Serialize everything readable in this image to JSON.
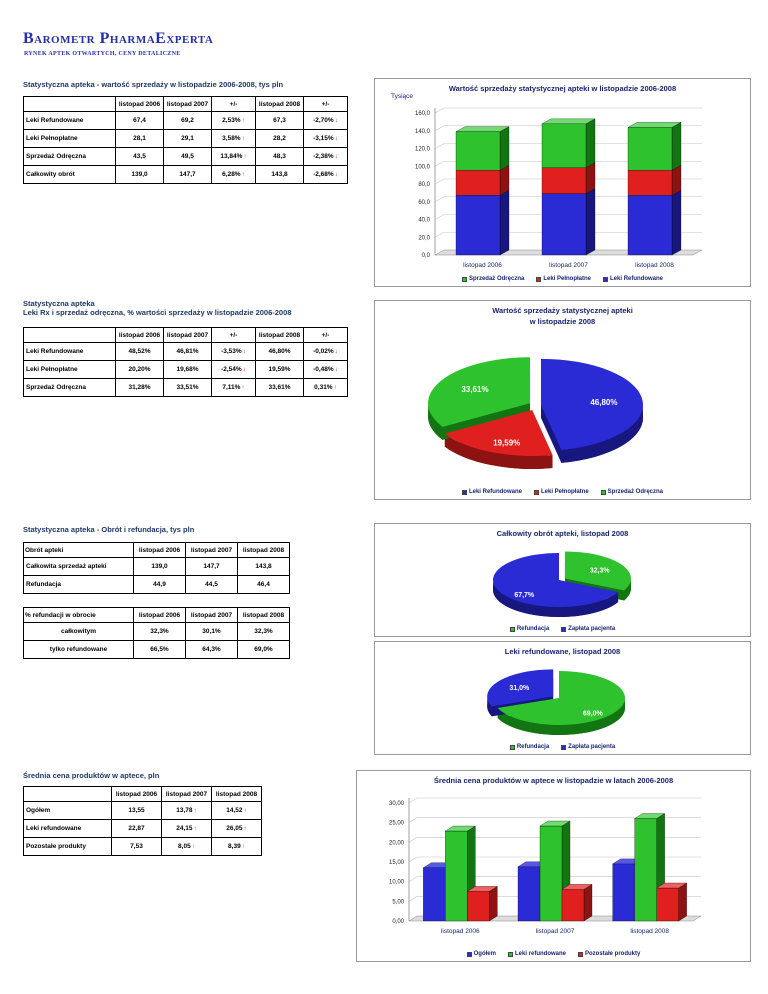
{
  "colors": {
    "title_blue": "#2431a5",
    "heading_navy": "#1f3864",
    "chart_text_navy": "#17246e",
    "arrow_up_green": "#18a018",
    "arrow_down_red": "#e01818"
  },
  "palette": {
    "blue": {
      "front": "#2b2bd5",
      "side": "#17177f",
      "top": "#5858e6"
    },
    "red": {
      "front": "#e01f1f",
      "side": "#8d1212",
      "top": "#ef6161"
    },
    "green": {
      "front": "#2ec22e",
      "side": "#127512",
      "top": "#6fdc6f"
    }
  },
  "header": {
    "title": "Barometr PharmaExperta",
    "subtitle": "RYNEK APTEK OTWARTYCH, CENY DETALICZNE"
  },
  "sections": {
    "s1": {
      "heading": "Statystyczna apteka - wartość sprzedaży w listopadzie 2006-2008, tys pln",
      "table": {
        "headers": [
          "",
          "listopad 2006",
          "listopad 2007",
          "+/-",
          "listopad 2008",
          "+/-"
        ],
        "rows": [
          [
            "Leki Refundowane",
            "67,4",
            "69,2",
            {
              "t": "2,53%",
              "a": "up"
            },
            "67,3",
            {
              "t": "-2,70%",
              "a": "down"
            }
          ],
          [
            "Leki Pełnopłatne",
            "28,1",
            "29,1",
            {
              "t": "3,58%",
              "a": "up"
            },
            "28,2",
            {
              "t": "-3,15%",
              "a": "down"
            }
          ],
          [
            "Sprzedaż Odręczna",
            "43,5",
            "49,5",
            {
              "t": "13,84%",
              "a": "up"
            },
            "48,3",
            {
              "t": "-2,38%",
              "a": "down"
            }
          ],
          [
            "Całkowity obrót",
            "139,0",
            "147,7",
            {
              "t": "6,28%",
              "a": "up"
            },
            "143,8",
            {
              "t": "-2,68%",
              "a": "down"
            }
          ]
        ]
      }
    },
    "s2": {
      "heading1": "Statystyczna apteka",
      "heading2": "Leki Rx i sprzedaż odręczna, % wartości sprzedaży w listopadzie 2006-2008",
      "table": {
        "headers": [
          "",
          "listopad 2006",
          "listopad 2007",
          "+/-",
          "listopad 2008",
          "+/-"
        ],
        "rows": [
          [
            "Leki Refundowane",
            "48,52%",
            "46,81%",
            {
              "t": "-3,53%",
              "a": "down"
            },
            "46,80%",
            {
              "t": "-0,02%",
              "a": "down"
            }
          ],
          [
            "Leki Pełnopłatne",
            "20,20%",
            "19,68%",
            {
              "t": "-2,54%",
              "a": "down"
            },
            "19,59%",
            {
              "t": "-0,48%",
              "a": "down"
            }
          ],
          [
            "Sprzedaż Odręczna",
            "31,28%",
            "33,51%",
            {
              "t": "7,11%",
              "a": "up"
            },
            "33,61%",
            {
              "t": "0,31%",
              "a": "up"
            }
          ]
        ]
      }
    },
    "s3": {
      "heading": "Statystyczna apteka - Obrót i refundacja, tys pln",
      "tableA": {
        "headers": [
          "Obrót apteki",
          "listopad 2006",
          "listopad 2007",
          "listopad 2008"
        ],
        "rows": [
          [
            "Całkowita sprzedaż apteki",
            "139,0",
            "147,7",
            "143,8"
          ],
          [
            "Refundacja",
            "44,9",
            "44,5",
            "46,4"
          ]
        ]
      },
      "tableB": {
        "headers": [
          "% refundacji w obrocie",
          "listopad 2006",
          "listopad 2007",
          "listopad 2008"
        ],
        "rows": [
          [
            "całkowitym",
            "32,3%",
            "30,1%",
            "32,3%"
          ],
          [
            "tylko refundowane",
            "66,5%",
            "64,3%",
            "69,0%"
          ]
        ]
      }
    },
    "s4": {
      "heading": "Średnia cena produktów w aptece, pln",
      "table": {
        "headers": [
          "",
          "listopad 2006",
          "listopad 2007",
          "listopad 2008"
        ],
        "rows": [
          [
            "Ogółem",
            "13,55",
            {
              "t": "13,78",
              "a": "up"
            },
            {
              "t": "14,52",
              "a": "up"
            }
          ],
          [
            "Leki refundowane",
            "22,87",
            {
              "t": "24,15",
              "a": "up"
            },
            {
              "t": "26,05",
              "a": "up"
            }
          ],
          [
            "Pozostałe produkty",
            "7,53",
            {
              "t": "8,05",
              "a": "up"
            },
            {
              "t": "8,39",
              "a": "up"
            }
          ]
        ]
      }
    }
  },
  "chart_data": [
    {
      "type": "bar",
      "stacked": true,
      "title": "Wartość sprzedaży statystycznej apteki w listopadzie 2006-2008",
      "axis_title": "Tysiące",
      "categories": [
        "listopad 2006",
        "listopad 2007",
        "listopad 2008"
      ],
      "series": [
        {
          "name": "Leki Refundowane",
          "color": "blue",
          "values": [
            67.4,
            69.2,
            67.3
          ]
        },
        {
          "name": "Leki Pełnopłatne",
          "color": "red",
          "values": [
            28.1,
            29.1,
            28.2
          ]
        },
        {
          "name": "Sprzedaż Odręczna",
          "color": "green",
          "values": [
            43.5,
            49.5,
            48.3
          ]
        }
      ],
      "ylim": [
        0,
        160
      ],
      "yticks": [
        "0,0",
        "20,0",
        "40,0",
        "60,0",
        "80,0",
        "100,0",
        "120,0",
        "140,0",
        "160,0"
      ],
      "legend_position": "bottom",
      "legend": [
        {
          "label": "Sprzedaż Odręczna",
          "color": "green"
        },
        {
          "label": "Leki Pełnopłatne",
          "color": "red"
        },
        {
          "label": "Leki Refundowane",
          "color": "blue"
        }
      ]
    },
    {
      "type": "pie",
      "title_lines": [
        "Wartość sprzedaży statystycznej apteki",
        "w listopadzie 2008"
      ],
      "slices": [
        {
          "name": "Leki Refundowane",
          "label": "46,80%",
          "value": 46.8,
          "color": "blue",
          "explode": 4
        },
        {
          "name": "Leki Pełnopłatne",
          "label": "19,59%",
          "value": 19.59,
          "color": "red",
          "explode": 12
        },
        {
          "name": "Sprzedaż Odręczna",
          "label": "33,61%",
          "value": 33.61,
          "color": "green",
          "explode": 8
        }
      ],
      "legend_position": "bottom",
      "legend": [
        {
          "label": "Leki Refundowane",
          "color": "blue"
        },
        {
          "label": "Leki Pełnopłatne",
          "color": "red"
        },
        {
          "label": "Sprzedaż Odręczna",
          "color": "green"
        }
      ]
    },
    {
      "type": "pie",
      "title": "Całkowity obrót apteki, listopad 2008",
      "slices": [
        {
          "name": "Refundacja",
          "label": "32,3%",
          "value": 32.3,
          "color": "green",
          "explode": 7
        },
        {
          "name": "Zapłata pacjenta",
          "label": "67,7%",
          "value": 67.7,
          "color": "blue",
          "explode": 0
        }
      ],
      "legend_position": "bottom",
      "legend": [
        {
          "label": "Refundacja",
          "color": "green"
        },
        {
          "label": "Zapłata pacjenta",
          "color": "blue"
        }
      ]
    },
    {
      "type": "pie",
      "title": "Leki refundowane, listopad 2008",
      "slices": [
        {
          "name": "Refundacja",
          "label": "69,0%",
          "value": 69.0,
          "color": "green",
          "explode": 0
        },
        {
          "name": "Zapłata pacjenta",
          "label": "31,0%",
          "value": 31.0,
          "color": "blue",
          "explode": 7
        }
      ],
      "legend_position": "bottom",
      "legend": [
        {
          "label": "Refundacja",
          "color": "green"
        },
        {
          "label": "Zapłata pacjenta",
          "color": "blue"
        }
      ]
    },
    {
      "type": "bar",
      "stacked": false,
      "title": "Średnia cena produktów w aptece w listopadzie w latach 2006-2008",
      "categories": [
        "listopad 2006",
        "listopad 2007",
        "listopad 2008"
      ],
      "series": [
        {
          "name": "Ogółem",
          "color": "blue",
          "values": [
            13.55,
            13.78,
            14.52
          ]
        },
        {
          "name": "Leki refundowane",
          "color": "green",
          "values": [
            22.87,
            24.15,
            26.05
          ]
        },
        {
          "name": "Pozostałe produkty",
          "color": "red",
          "values": [
            7.53,
            8.05,
            8.39
          ]
        }
      ],
      "ylim": [
        0,
        30
      ],
      "yticks": [
        "0,00",
        "5,00",
        "10,00",
        "15,00",
        "20,00",
        "25,00",
        "30,00"
      ],
      "legend_position": "bottom",
      "legend": [
        {
          "label": "Ogółem",
          "color": "blue"
        },
        {
          "label": "Leki refundowane",
          "color": "green"
        },
        {
          "label": "Pozostałe produkty",
          "color": "red"
        }
      ]
    }
  ]
}
